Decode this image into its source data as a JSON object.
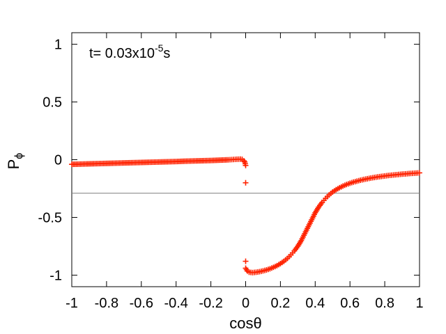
{
  "chart_data": {
    "type": "scatter",
    "xlabel": "cosθ",
    "ylabel": "P",
    "ylabel_sub": "ϕ",
    "xlim": [
      -1,
      1
    ],
    "ylim": [
      -1.1,
      1.1
    ],
    "grid": false,
    "xticks": [
      -1,
      -0.8,
      -0.6,
      -0.4,
      -0.2,
      0,
      0.2,
      0.4,
      0.6,
      0.8,
      1
    ],
    "xtick_labels": [
      "-1",
      "-0.8",
      "-0.6",
      "-0.4",
      "-0.2",
      "0",
      "0.2",
      "0.4",
      "0.6",
      "0.8",
      "1"
    ],
    "yticks": [
      -1,
      -0.5,
      0,
      0.5,
      1
    ],
    "ytick_labels": [
      "-1",
      "-0.5",
      "0",
      "0.5",
      "1"
    ],
    "annotation": {
      "prefix": "t=  0.03x10",
      "exponent": "-5",
      "suffix": "s"
    },
    "reference_line": {
      "y": -0.29,
      "color": "#808080"
    },
    "series": [
      {
        "marker": "plus",
        "color": "#ff2200",
        "points": [
          [
            -1.0,
            -0.04
          ],
          [
            -0.95,
            -0.038
          ],
          [
            -0.9,
            -0.036
          ],
          [
            -0.85,
            -0.034
          ],
          [
            -0.8,
            -0.032
          ],
          [
            -0.75,
            -0.03
          ],
          [
            -0.7,
            -0.028
          ],
          [
            -0.65,
            -0.026
          ],
          [
            -0.6,
            -0.024
          ],
          [
            -0.55,
            -0.022
          ],
          [
            -0.5,
            -0.02
          ],
          [
            -0.45,
            -0.018
          ],
          [
            -0.4,
            -0.016
          ],
          [
            -0.35,
            -0.013
          ],
          [
            -0.3,
            -0.011
          ],
          [
            -0.25,
            -0.009
          ],
          [
            -0.2,
            -0.007
          ],
          [
            -0.15,
            -0.004
          ],
          [
            -0.1,
            -0.001
          ],
          [
            -0.07,
            0.002
          ],
          [
            -0.05,
            0.004
          ],
          [
            -0.03,
            0.005
          ],
          [
            -0.02,
            0.003
          ],
          [
            -0.01,
            -0.01
          ],
          [
            -0.005,
            -0.02
          ],
          [
            0.0,
            -0.05
          ],
          [
            0.0,
            -0.2
          ],
          [
            0.0,
            -0.88
          ],
          [
            0.0,
            -0.94
          ],
          [
            0.01,
            -0.965
          ],
          [
            0.02,
            -0.975
          ],
          [
            0.04,
            -0.978
          ],
          [
            0.06,
            -0.975
          ],
          [
            0.08,
            -0.97
          ],
          [
            0.1,
            -0.963
          ],
          [
            0.12,
            -0.955
          ],
          [
            0.14,
            -0.945
          ],
          [
            0.16,
            -0.932
          ],
          [
            0.18,
            -0.918
          ],
          [
            0.2,
            -0.9
          ],
          [
            0.22,
            -0.88
          ],
          [
            0.24,
            -0.855
          ],
          [
            0.26,
            -0.825
          ],
          [
            0.28,
            -0.79
          ],
          [
            0.3,
            -0.75
          ],
          [
            0.32,
            -0.7
          ],
          [
            0.34,
            -0.64
          ],
          [
            0.36,
            -0.58
          ],
          [
            0.38,
            -0.52
          ],
          [
            0.4,
            -0.46
          ],
          [
            0.42,
            -0.41
          ],
          [
            0.44,
            -0.37
          ],
          [
            0.46,
            -0.335
          ],
          [
            0.48,
            -0.305
          ],
          [
            0.5,
            -0.28
          ],
          [
            0.52,
            -0.26
          ],
          [
            0.54,
            -0.243
          ],
          [
            0.56,
            -0.228
          ],
          [
            0.58,
            -0.215
          ],
          [
            0.6,
            -0.204
          ],
          [
            0.62,
            -0.194
          ],
          [
            0.64,
            -0.186
          ],
          [
            0.66,
            -0.178
          ],
          [
            0.68,
            -0.171
          ],
          [
            0.7,
            -0.165
          ],
          [
            0.72,
            -0.159
          ],
          [
            0.74,
            -0.154
          ],
          [
            0.76,
            -0.149
          ],
          [
            0.78,
            -0.145
          ],
          [
            0.8,
            -0.141
          ],
          [
            0.82,
            -0.137
          ],
          [
            0.84,
            -0.134
          ],
          [
            0.86,
            -0.131
          ],
          [
            0.88,
            -0.128
          ],
          [
            0.9,
            -0.125
          ],
          [
            0.92,
            -0.123
          ],
          [
            0.94,
            -0.12
          ],
          [
            0.96,
            -0.118
          ],
          [
            0.98,
            -0.116
          ],
          [
            1.0,
            -0.114
          ]
        ]
      }
    ]
  }
}
